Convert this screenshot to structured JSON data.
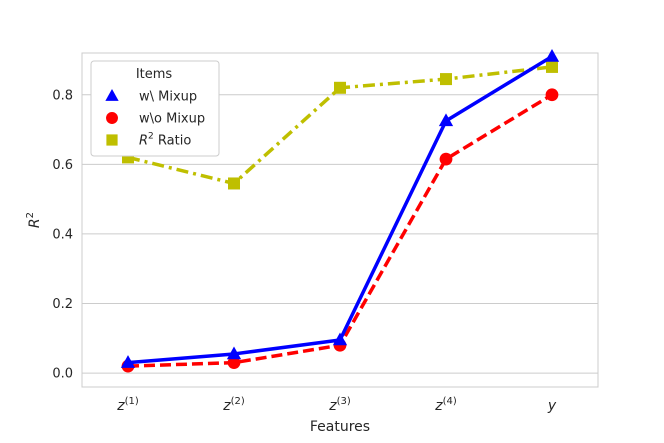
{
  "chart_data": {
    "type": "line",
    "categories": [
      {
        "base": "z",
        "sup": "(1)"
      },
      {
        "base": "z",
        "sup": "(2)"
      },
      {
        "base": "z",
        "sup": "(3)"
      },
      {
        "base": "z",
        "sup": "(4)"
      },
      {
        "base": "y",
        "sup": ""
      }
    ],
    "series": [
      {
        "name": "w\\ Mixup",
        "values": [
          0.03,
          0.055,
          0.095,
          0.725,
          0.91
        ],
        "color": "#0000ff",
        "marker": "triangle",
        "dash": "solid"
      },
      {
        "name": "w\\o Mixup",
        "values": [
          0.02,
          0.03,
          0.08,
          0.615,
          0.8
        ],
        "color": "#ff0000",
        "marker": "circle",
        "dash": "dashed"
      },
      {
        "name": "Ratio",
        "name_prefix": "R",
        "name_sup": "2",
        "values": [
          0.62,
          0.545,
          0.82,
          0.845,
          0.88
        ],
        "color": "#bfbf00",
        "marker": "square",
        "dash": "dashdot"
      }
    ],
    "xlabel": "Features",
    "ylabel": {
      "base": "R",
      "sup": "2"
    },
    "ylim": [
      -0.04,
      0.92
    ],
    "yticks": [
      "0.0",
      "0.2",
      "0.4",
      "0.6",
      "0.8"
    ],
    "ytick_values": [
      0.0,
      0.2,
      0.4,
      0.6,
      0.8
    ],
    "grid": "horizontal",
    "legend": {
      "title": "Items",
      "position": "top-left"
    }
  }
}
